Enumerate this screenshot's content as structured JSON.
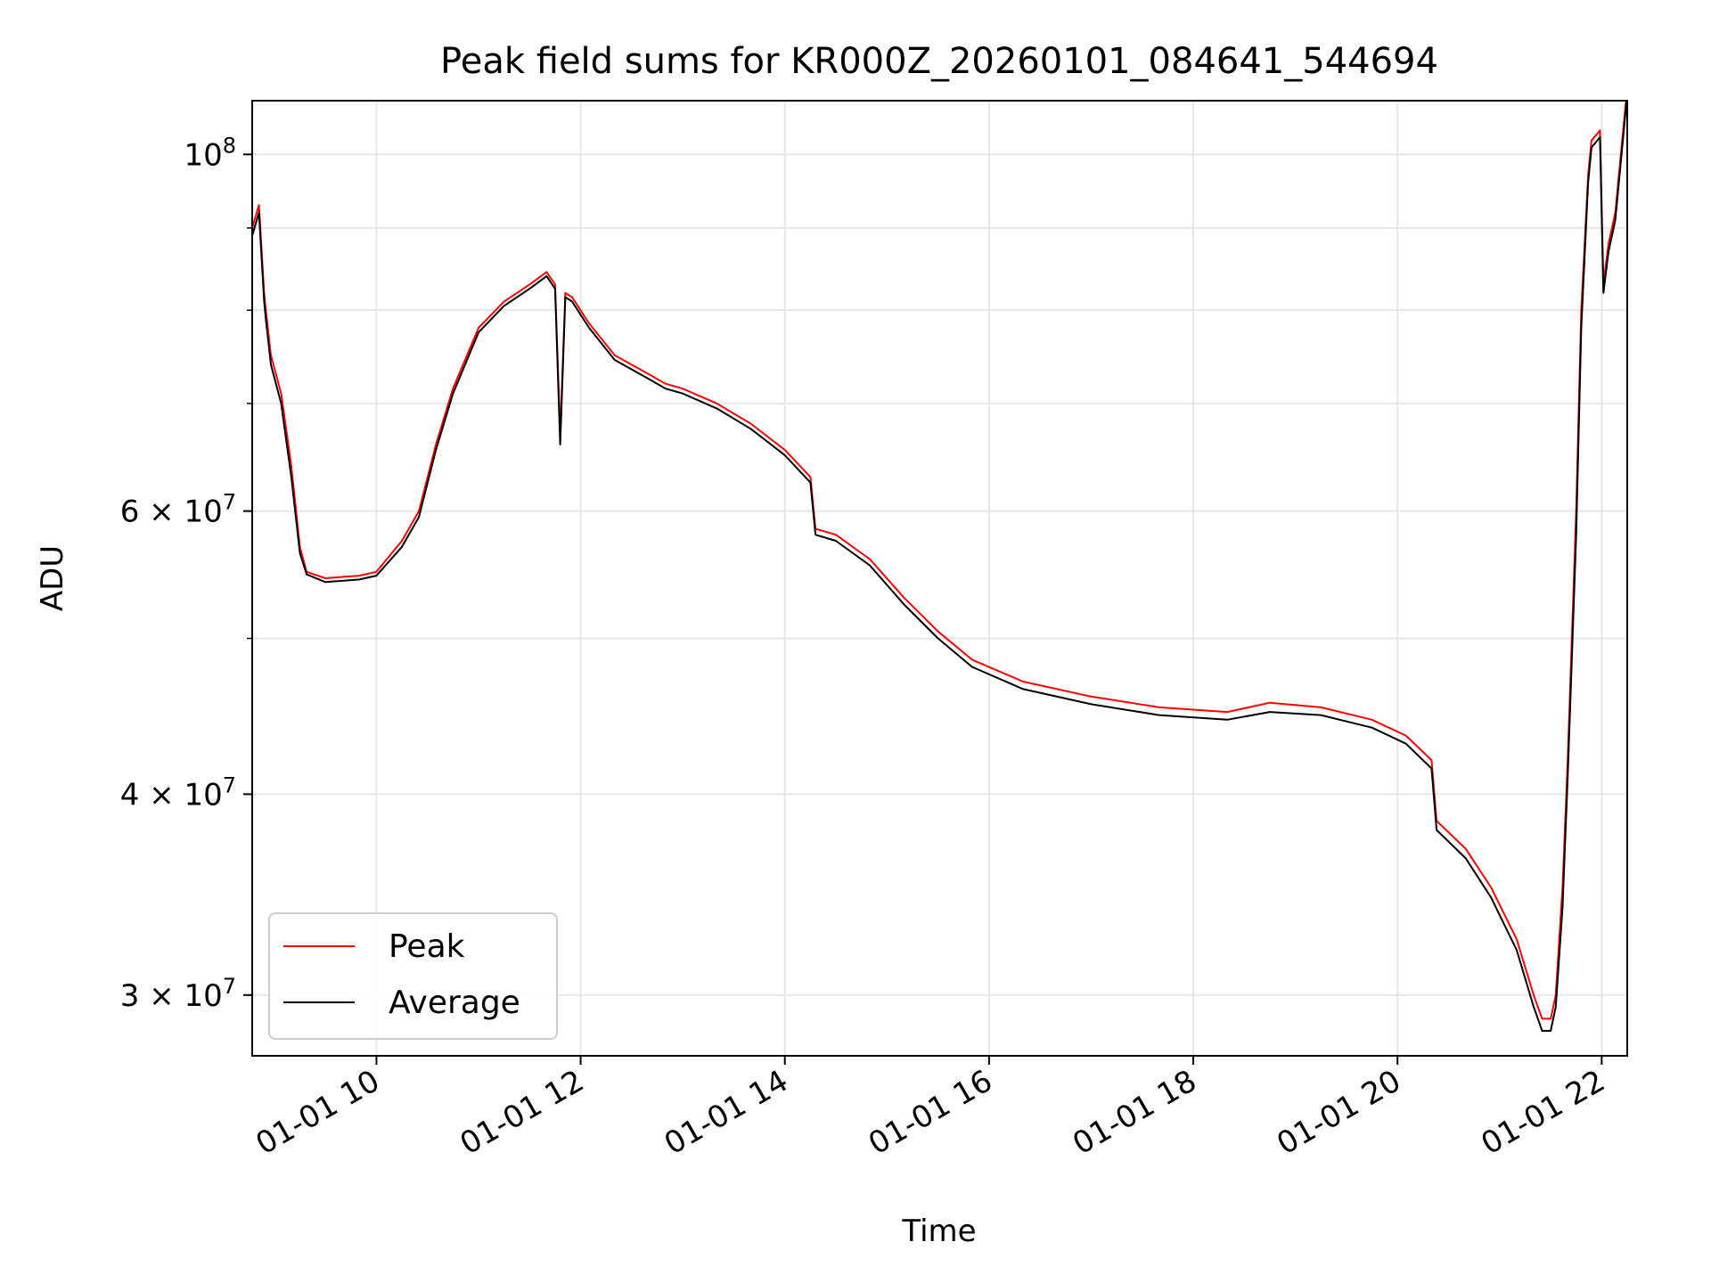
{
  "chart_data": {
    "type": "line",
    "title": "Peak field sums for KR000Z_20260101_084641_544694",
    "xlabel": "Time",
    "ylabel": "ADU",
    "xlim": [
      "2026-01-01 08:47",
      "2026-01-01 22:15"
    ],
    "ylim": [
      27500000,
      108000000
    ],
    "yscale": "log",
    "grid": true,
    "legend_position": "lower-left",
    "x_ticks": [
      "01-01 10",
      "01-01 12",
      "01-01 14",
      "01-01 16",
      "01-01 18",
      "01-01 20",
      "01-01 22"
    ],
    "y_ticks": [
      "10^8",
      "6×10^7",
      "4×10^7",
      "3×10^7"
    ],
    "series": [
      {
        "name": "Peak",
        "color": "#ff0000",
        "x": [
          "2026-01-01 08:47",
          "2026-01-01 08:51",
          "2026-01-01 08:54",
          "2026-01-01 08:55",
          "2026-01-01 08:58",
          "2026-01-01 09:04",
          "2026-01-01 09:10",
          "2026-01-01 09:15",
          "2026-01-01 09:19",
          "2026-01-01 09:30",
          "2026-01-01 09:50",
          "2026-01-01 10:00",
          "2026-01-01 10:15",
          "2026-01-01 10:25",
          "2026-01-01 10:35",
          "2026-01-01 10:45",
          "2026-01-01 11:00",
          "2026-01-01 11:15",
          "2026-01-01 11:30",
          "2026-01-01 11:40",
          "2026-01-01 11:45",
          "2026-01-01 11:48",
          "2026-01-01 11:51",
          "2026-01-01 11:55",
          "2026-01-01 12:05",
          "2026-01-01 12:20",
          "2026-01-01 12:40",
          "2026-01-01 12:50",
          "2026-01-01 13:00",
          "2026-01-01 13:20",
          "2026-01-01 13:40",
          "2026-01-01 14:00",
          "2026-01-01 14:15",
          "2026-01-01 14:18",
          "2026-01-01 14:30",
          "2026-01-01 14:50",
          "2026-01-01 15:10",
          "2026-01-01 15:30",
          "2026-01-01 15:50",
          "2026-01-01 16:20",
          "2026-01-01 17:00",
          "2026-01-01 17:40",
          "2026-01-01 18:20",
          "2026-01-01 18:45",
          "2026-01-01 19:15",
          "2026-01-01 19:45",
          "2026-01-01 20:05",
          "2026-01-01 20:20",
          "2026-01-01 20:23",
          "2026-01-01 20:40",
          "2026-01-01 20:55",
          "2026-01-01 21:10",
          "2026-01-01 21:20",
          "2026-01-01 21:25",
          "2026-01-01 21:30",
          "2026-01-01 21:33",
          "2026-01-01 21:37",
          "2026-01-01 21:40",
          "2026-01-01 21:45",
          "2026-01-01 21:48",
          "2026-01-01 21:52",
          "2026-01-01 21:54",
          "2026-01-01 21:59",
          "2026-01-01 22:01",
          "2026-01-01 22:04",
          "2026-01-01 22:08",
          "2026-01-01 22:15"
        ],
        "y": [
          90000000,
          93000000,
          82000000,
          80000000,
          75000000,
          71000000,
          64000000,
          57000000,
          55000000,
          54500000,
          54700000,
          55000000,
          57500000,
          60000000,
          66000000,
          71500000,
          78000000,
          81000000,
          83000000,
          84500000,
          83000000,
          67000000,
          82000000,
          81500000,
          78500000,
          75000000,
          73000000,
          72000000,
          71500000,
          70000000,
          68000000,
          65500000,
          63000000,
          58500000,
          58000000,
          56000000,
          53000000,
          50500000,
          48500000,
          47000000,
          46000000,
          45300000,
          45000000,
          45600000,
          45300000,
          44500000,
          43500000,
          42000000,
          38500000,
          37000000,
          35000000,
          32500000,
          30000000,
          29000000,
          29000000,
          30000000,
          35000000,
          42000000,
          60000000,
          80000000,
          97000000,
          102000000,
          103500000,
          83000000,
          88000000,
          92000000,
          110000000
        ]
      },
      {
        "name": "Average",
        "color": "#000000",
        "x": [
          "2026-01-01 08:47",
          "2026-01-01 08:51",
          "2026-01-01 08:54",
          "2026-01-01 08:55",
          "2026-01-01 08:58",
          "2026-01-01 09:04",
          "2026-01-01 09:10",
          "2026-01-01 09:15",
          "2026-01-01 09:19",
          "2026-01-01 09:30",
          "2026-01-01 09:50",
          "2026-01-01 10:00",
          "2026-01-01 10:15",
          "2026-01-01 10:25",
          "2026-01-01 10:35",
          "2026-01-01 10:45",
          "2026-01-01 11:00",
          "2026-01-01 11:15",
          "2026-01-01 11:30",
          "2026-01-01 11:40",
          "2026-01-01 11:45",
          "2026-01-01 11:48",
          "2026-01-01 11:51",
          "2026-01-01 11:55",
          "2026-01-01 12:05",
          "2026-01-01 12:20",
          "2026-01-01 12:40",
          "2026-01-01 12:50",
          "2026-01-01 13:00",
          "2026-01-01 13:20",
          "2026-01-01 13:40",
          "2026-01-01 14:00",
          "2026-01-01 14:15",
          "2026-01-01 14:18",
          "2026-01-01 14:30",
          "2026-01-01 14:50",
          "2026-01-01 15:10",
          "2026-01-01 15:30",
          "2026-01-01 15:50",
          "2026-01-01 16:20",
          "2026-01-01 17:00",
          "2026-01-01 17:40",
          "2026-01-01 18:20",
          "2026-01-01 18:45",
          "2026-01-01 19:15",
          "2026-01-01 19:45",
          "2026-01-01 20:05",
          "2026-01-01 20:20",
          "2026-01-01 20:23",
          "2026-01-01 20:40",
          "2026-01-01 20:55",
          "2026-01-01 21:10",
          "2026-01-01 21:20",
          "2026-01-01 21:25",
          "2026-01-01 21:30",
          "2026-01-01 21:33",
          "2026-01-01 21:37",
          "2026-01-01 21:40",
          "2026-01-01 21:45",
          "2026-01-01 21:48",
          "2026-01-01 21:52",
          "2026-01-01 21:54",
          "2026-01-01 21:59",
          "2026-01-01 22:01",
          "2026-01-01 22:04",
          "2026-01-01 22:08",
          "2026-01-01 22:15"
        ],
        "y": [
          89000000,
          92000000,
          81000000,
          79000000,
          74000000,
          70000000,
          63000000,
          56500000,
          54800000,
          54200000,
          54400000,
          54700000,
          57000000,
          59500000,
          65500000,
          71000000,
          77500000,
          80500000,
          82500000,
          84000000,
          82500000,
          66000000,
          81500000,
          81000000,
          78000000,
          74500000,
          72500000,
          71500000,
          71000000,
          69500000,
          67500000,
          65000000,
          62500000,
          58000000,
          57500000,
          55500000,
          52500000,
          50000000,
          48000000,
          46500000,
          45500000,
          44800000,
          44500000,
          45000000,
          44800000,
          44000000,
          43000000,
          41500000,
          38000000,
          36500000,
          34500000,
          32000000,
          29500000,
          28500000,
          28500000,
          29500000,
          34000000,
          41000000,
          58000000,
          78000000,
          96000000,
          101000000,
          102500000,
          82000000,
          87000000,
          91000000,
          109000000
        ]
      }
    ]
  }
}
